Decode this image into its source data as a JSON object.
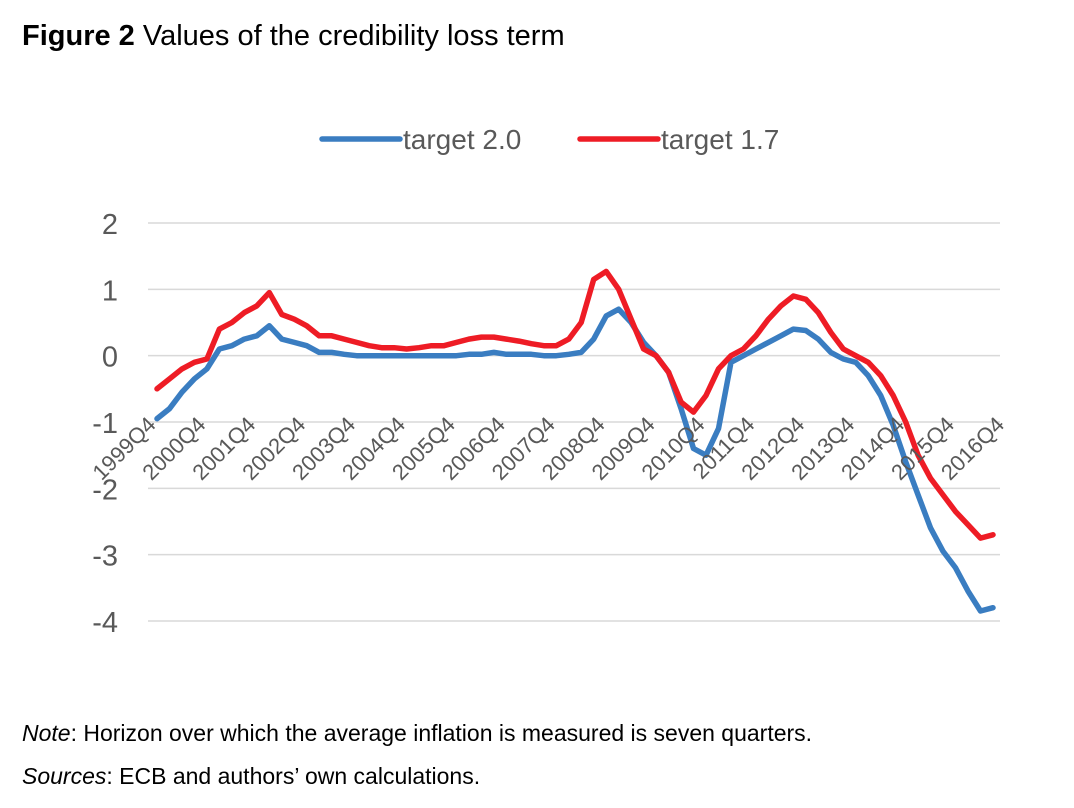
{
  "figure": {
    "label": "Figure 2",
    "title": "Values of the credibility loss term"
  },
  "note": {
    "label": "Note",
    "text": ": Horizon over which the average inflation is measured is seven quarters."
  },
  "sources": {
    "label": "Sources",
    "text": ": ECB and authors’ own calculations."
  },
  "chart_data": {
    "type": "line",
    "title": "",
    "xlabel": "",
    "ylabel": "",
    "ylim": [
      -4,
      2
    ],
    "yticks": [
      2,
      1,
      0,
      -1,
      -2,
      -3,
      -4
    ],
    "grid": true,
    "legend": "top-center",
    "start_quarter": "1999Q4",
    "x_tick_labels": [
      "1999Q4",
      "2000Q4",
      "2001Q4",
      "2002Q4",
      "2003Q4",
      "2004Q4",
      "2005Q4",
      "2006Q4",
      "2007Q4",
      "2008Q4",
      "2009Q4",
      "2010Q4",
      "2011Q4",
      "2012Q4",
      "2013Q4",
      "2014Q4",
      "2015Q4",
      "2016Q4"
    ],
    "series": [
      {
        "name": "target 2.0",
        "color": "#3A7DC1",
        "values": [
          -0.95,
          -0.8,
          -0.55,
          -0.35,
          -0.2,
          0.1,
          0.15,
          0.25,
          0.3,
          0.45,
          0.25,
          0.2,
          0.15,
          0.05,
          0.05,
          0.02,
          0.0,
          0.0,
          0.0,
          0.0,
          0.0,
          0.0,
          0.0,
          0.0,
          0.0,
          0.02,
          0.02,
          0.05,
          0.02,
          0.02,
          0.02,
          0.0,
          0.0,
          0.02,
          0.05,
          0.25,
          0.6,
          0.7,
          0.5,
          0.2,
          0.0,
          -0.25,
          -0.8,
          -1.4,
          -1.5,
          -1.1,
          -0.1,
          0.0,
          0.1,
          0.2,
          0.3,
          0.4,
          0.38,
          0.25,
          0.05,
          -0.05,
          -0.1,
          -0.3,
          -0.6,
          -1.05,
          -1.6,
          -2.1,
          -2.6,
          -2.95,
          -3.2,
          -3.55,
          -3.85,
          -3.8
        ]
      },
      {
        "name": "target 1.7",
        "color": "#EE1C25",
        "values": [
          -0.5,
          -0.35,
          -0.2,
          -0.1,
          -0.05,
          0.4,
          0.5,
          0.65,
          0.75,
          0.95,
          0.62,
          0.55,
          0.45,
          0.3,
          0.3,
          0.25,
          0.2,
          0.15,
          0.12,
          0.12,
          0.1,
          0.12,
          0.15,
          0.15,
          0.2,
          0.25,
          0.28,
          0.28,
          0.25,
          0.22,
          0.18,
          0.15,
          0.15,
          0.25,
          0.5,
          1.15,
          1.27,
          1.0,
          0.55,
          0.1,
          0.0,
          -0.25,
          -0.7,
          -0.85,
          -0.6,
          -0.2,
          0.0,
          0.1,
          0.3,
          0.55,
          0.75,
          0.9,
          0.85,
          0.65,
          0.35,
          0.1,
          0.0,
          -0.1,
          -0.3,
          -0.6,
          -1.0,
          -1.5,
          -1.85,
          -2.1,
          -2.35,
          -2.55,
          -2.75,
          -2.7
        ]
      }
    ]
  }
}
